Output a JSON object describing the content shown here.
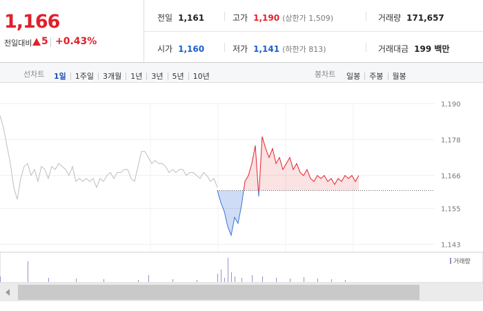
{
  "quote": {
    "price": "1,166",
    "change_label": "전일대비",
    "change": "5",
    "change_rate": "+0.43%",
    "color": "#e0202a"
  },
  "stats": [
    [
      {
        "label": "전일",
        "value": "1,161"
      },
      {
        "label": "고가",
        "value": "1,190",
        "color": "#e0202a",
        "note": "(상한가 1,509)"
      },
      {
        "label": "거래량",
        "value": "171,657"
      }
    ],
    [
      {
        "label": "시가",
        "value": "1,160",
        "color": "#1a5fc8"
      },
      {
        "label": "저가",
        "value": "1,141",
        "color": "#1a5fc8",
        "note": "(하한가 813)"
      },
      {
        "label": "거래대금",
        "value": "199 백만"
      }
    ]
  ],
  "tabs": {
    "line_label": "선차트",
    "line": [
      "1일",
      "1주일",
      "3개월",
      "1년",
      "3년",
      "5년",
      "10년"
    ],
    "active": 0,
    "candle_label": "봉차트",
    "candle": [
      "일봉",
      "주봉",
      "월봉"
    ]
  },
  "chart_data": {
    "type": "line",
    "xlim": [
      0,
      126
    ],
    "xticks": [
      43.6,
      63.2,
      82.8,
      102.4
    ],
    "ylim": [
      1140.6,
      1196.9
    ],
    "yticks": [
      {
        "value": 1190,
        "label": "1,190"
      },
      {
        "value": 1178,
        "label": "1,178"
      },
      {
        "value": 1166,
        "label": "1,166"
      },
      {
        "value": 1155,
        "label": "1,155"
      },
      {
        "value": 1143,
        "label": "1,143"
      }
    ],
    "grid": true,
    "baseline": 1161,
    "series": [
      {
        "color": "#bdbdbd",
        "x": [
          0,
          1,
          2,
          3,
          4,
          5,
          6,
          7,
          8,
          9,
          10,
          11,
          12,
          13,
          14,
          15,
          16,
          17,
          18,
          19,
          20,
          21,
          22,
          23,
          24,
          25,
          26,
          27,
          28,
          29,
          30,
          31,
          32,
          33,
          34,
          35,
          36,
          37,
          38,
          39,
          40,
          41,
          42,
          43,
          44,
          45,
          46,
          47,
          48,
          49,
          50,
          51,
          52,
          53,
          54,
          55,
          56,
          57,
          58,
          59,
          60,
          61,
          62,
          63
        ],
        "values": [
          1186,
          1182,
          1176,
          1170,
          1162,
          1158,
          1165,
          1169,
          1170,
          1166,
          1168,
          1164,
          1169,
          1168,
          1165,
          1169,
          1168,
          1170,
          1169,
          1168,
          1166,
          1169,
          1164,
          1165,
          1164,
          1165,
          1164,
          1165,
          1162,
          1165,
          1164,
          1166,
          1167,
          1165,
          1167,
          1167,
          1168,
          1168,
          1165,
          1164,
          1169,
          1174,
          1174,
          1172,
          1170,
          1171,
          1170,
          1170,
          1169,
          1167,
          1168,
          1167,
          1168,
          1168,
          1166,
          1167,
          1167,
          1166,
          1165,
          1167,
          1166,
          1164,
          1165,
          1162
        ]
      },
      {
        "color": "#e0202a",
        "color_down": "#3a74d6",
        "x": [
          63,
          64,
          65,
          66,
          67,
          68,
          69,
          70,
          71,
          72,
          73,
          74,
          75,
          76,
          77,
          78,
          79,
          80,
          81,
          82,
          83,
          84,
          85,
          86,
          87,
          88,
          89,
          90,
          91,
          92,
          93,
          94,
          95,
          96,
          97,
          98,
          99,
          100,
          101,
          102,
          103,
          104
        ],
        "values": [
          1161,
          1157,
          1154,
          1149,
          1146,
          1152,
          1150,
          1156,
          1164,
          1166,
          1170,
          1176,
          1159,
          1179,
          1175,
          1172,
          1175,
          1170,
          1172,
          1168,
          1170,
          1172,
          1168,
          1170,
          1167,
          1166,
          1168,
          1165,
          1164,
          1166,
          1165,
          1166,
          1164,
          1165,
          1163,
          1165,
          1164,
          1166,
          1165,
          1166,
          1164,
          1166
        ]
      }
    ],
    "volume": {
      "name": "거래량",
      "color": "#9b8ec9",
      "ylim": [
        0,
        40
      ],
      "x": [
        0,
        8,
        14,
        22,
        30,
        40,
        43,
        50,
        57,
        63,
        64,
        65,
        66,
        67,
        68,
        70,
        73,
        76,
        80,
        84,
        88,
        92,
        96,
        100
      ],
      "values": [
        8,
        30,
        6,
        5,
        4,
        3,
        10,
        4,
        3,
        12,
        18,
        6,
        35,
        14,
        8,
        6,
        10,
        8,
        6,
        5,
        7,
        5,
        4,
        3
      ]
    }
  }
}
